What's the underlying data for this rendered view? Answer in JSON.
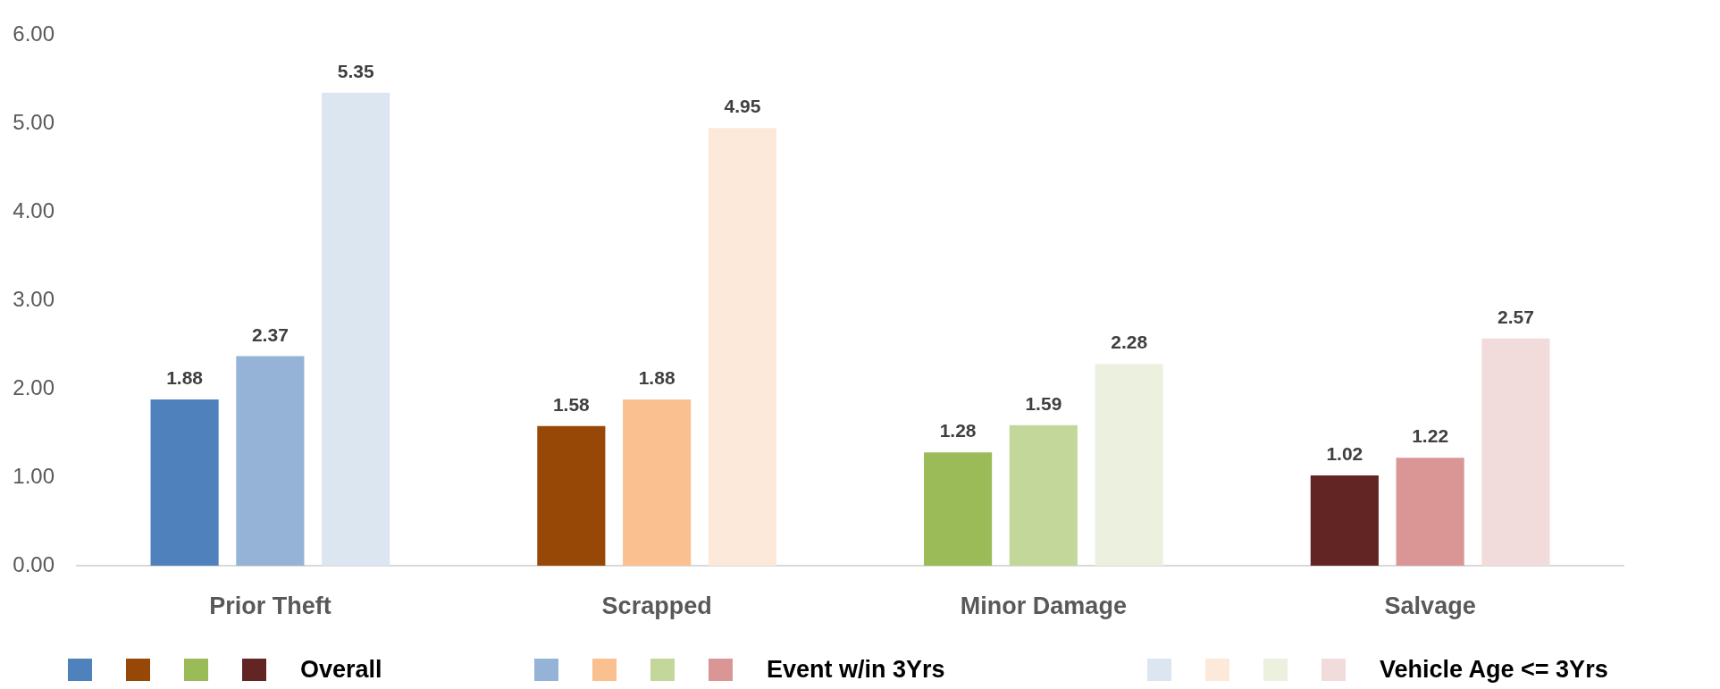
{
  "chart_data": {
    "type": "bar",
    "categories": [
      "Prior Theft",
      "Scrapped",
      "Minor Damage",
      "Salvage"
    ],
    "series": [
      {
        "name": "Overall",
        "colors": [
          "#4f81bd",
          "#974706",
          "#9bbb59",
          "#632523"
        ],
        "values": [
          1.88,
          1.58,
          1.28,
          1.02
        ]
      },
      {
        "name": "Event w/in 3Yrs",
        "colors": [
          "#95b3d7",
          "#fac090",
          "#c4d79b",
          "#da9694"
        ],
        "values": [
          2.37,
          1.88,
          1.59,
          1.22
        ]
      },
      {
        "name": "Vehicle Age <= 3Yrs",
        "colors": [
          "#dce6f1",
          "#fde9d9",
          "#ebf1de",
          "#f2dcdb"
        ],
        "values": [
          5.35,
          4.95,
          2.28,
          2.57
        ]
      }
    ],
    "ylim": [
      0,
      6
    ],
    "yticks": [
      {
        "value": 0,
        "label": "0.00"
      },
      {
        "value": 1,
        "label": "1.00"
      },
      {
        "value": 2,
        "label": "2.00"
      },
      {
        "value": 3,
        "label": "3.00"
      },
      {
        "value": 4,
        "label": "4.00"
      },
      {
        "value": 5,
        "label": "5.00"
      },
      {
        "value": 6,
        "label": "6.00"
      }
    ],
    "data_labels": true,
    "grid": false,
    "legend": "bottom"
  }
}
